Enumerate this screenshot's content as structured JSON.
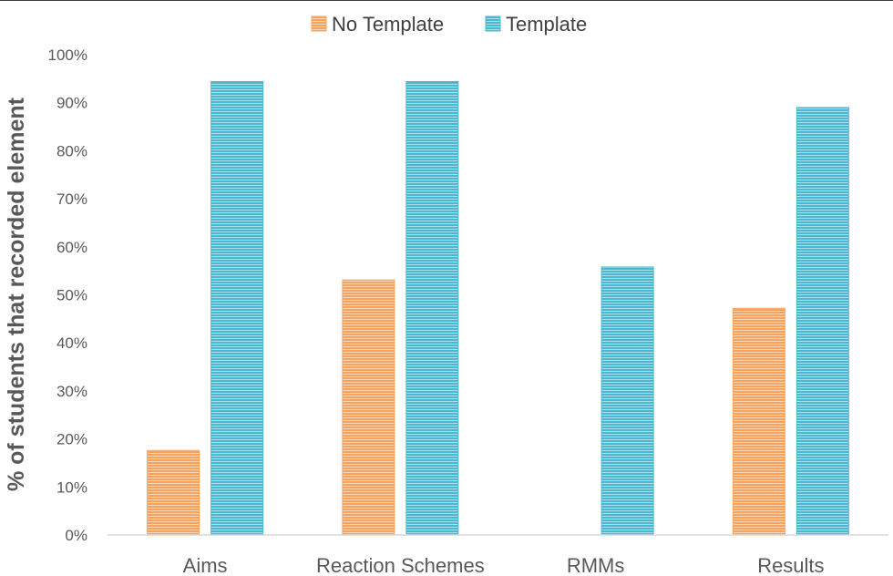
{
  "chart_data": {
    "type": "bar",
    "categories": [
      "Aims",
      "Reaction Schemes",
      "RMMs",
      "Results"
    ],
    "series": [
      {
        "name": "No Template",
        "values": [
          17.6,
          53.1,
          0,
          47.2
        ],
        "color": "#f4a460"
      },
      {
        "name": "Template",
        "values": [
          94.4,
          94.4,
          55.8,
          89.0
        ],
        "color": "#4ab8d0"
      }
    ],
    "title": "",
    "xlabel": "",
    "ylabel": "% of students that recorded element",
    "ylim": [
      0,
      100
    ],
    "yticks": [
      "0%",
      "10%",
      "20%",
      "30%",
      "40%",
      "50%",
      "60%",
      "70%",
      "80%",
      "90%",
      "100%"
    ],
    "grid": false,
    "legend_position": "top-center",
    "bar_pattern": "horizontal-stripes"
  }
}
